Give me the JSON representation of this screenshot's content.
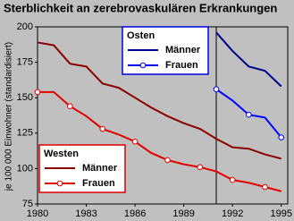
{
  "chart_data": {
    "type": "line",
    "title": "Sterblichkeit an zerebrovaskulären Erkrankungen",
    "y_label": "je 100 000 Einwohner (standardisiert)",
    "xlim": [
      1980,
      1995.4
    ],
    "xticks": [
      1980,
      1983,
      1986,
      1989,
      1992,
      1995
    ],
    "ylim": [
      75,
      200
    ],
    "yticks": [
      75,
      100,
      125,
      150,
      175,
      200
    ],
    "groups": [
      {
        "title": "Westen",
        "color": "#e00000",
        "series": [
          {
            "name": "Männer",
            "color": "#8b0000",
            "marker": false,
            "x": [
              1980,
              1981,
              1982,
              1983,
              1984,
              1985,
              1986,
              1987,
              1988,
              1989,
              1990,
              1991,
              1992,
              1993,
              1994,
              1995
            ],
            "values": [
              189,
              187,
              174,
              172,
              160,
              157,
              150,
              143,
              137,
              132,
              128,
              121,
              115,
              114,
              110,
              107
            ]
          },
          {
            "name": "Frauen",
            "color": "#e00000",
            "marker": true,
            "x": [
              1980,
              1981,
              1982,
              1983,
              1984,
              1985,
              1986,
              1987,
              1988,
              1989,
              1990,
              1991,
              1992,
              1993,
              1994,
              1995
            ],
            "values": [
              154,
              154,
              144,
              137,
              128,
              124,
              119,
              111,
              106,
              103,
              101,
              98,
              92,
              90,
              87,
              84
            ]
          }
        ]
      },
      {
        "title": "Osten",
        "color": "#0000e0",
        "series": [
          {
            "name": "Männer",
            "color": "#00008b",
            "marker": false,
            "x": [
              1991,
              1992,
              1993,
              1994,
              1995
            ],
            "values": [
              196,
              183,
              172,
              169,
              158
            ]
          },
          {
            "name": "Frauen",
            "color": "#0000ff",
            "marker": true,
            "x": [
              1991,
              1992,
              1993,
              1994,
              1995
            ],
            "values": [
              156,
              148,
              138,
              136,
              122
            ]
          }
        ]
      }
    ]
  }
}
